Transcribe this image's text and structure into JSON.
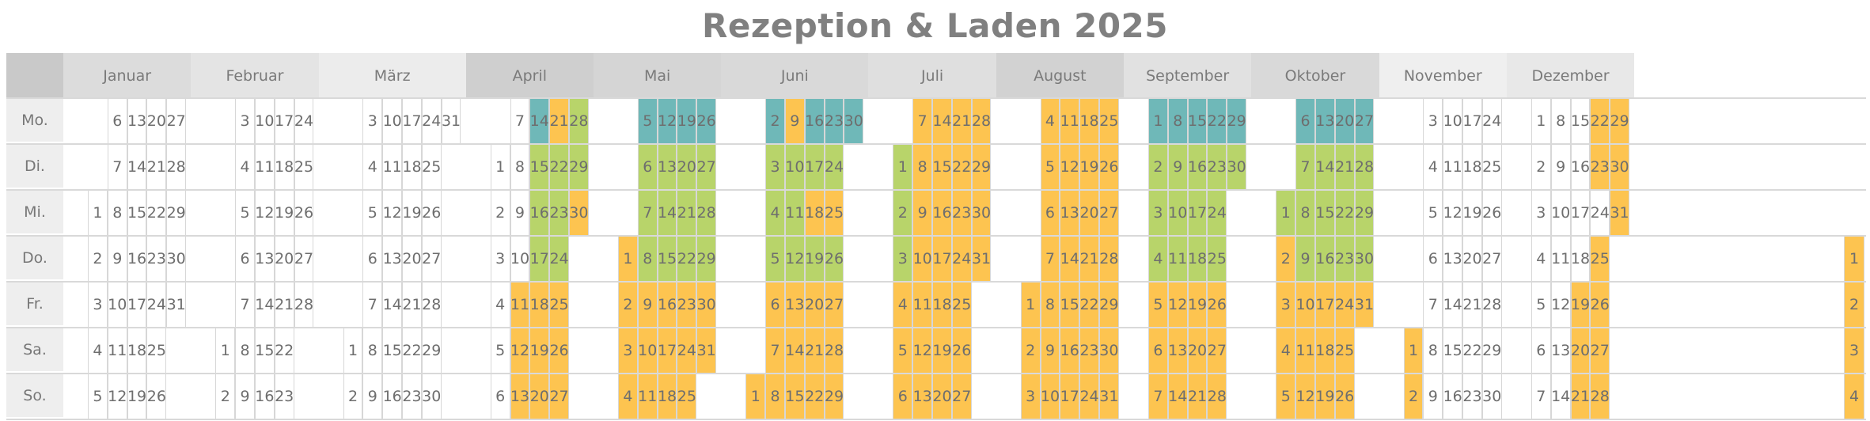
{
  "title": "Rezeption & Laden 2025",
  "colors": {
    "closed": "#ffffff",
    "orange": "#fdc450",
    "green": "#b8d46a",
    "teal": "#6fb8b8"
  },
  "weekdays": [
    "Mo.",
    "Di.",
    "Mi.",
    "Do.",
    "Fr.",
    "Sa.",
    "So."
  ],
  "months": [
    {
      "name": "Januar",
      "offset": 2,
      "days": 31
    },
    {
      "name": "Februar",
      "offset": 5,
      "days": 28
    },
    {
      "name": "März",
      "offset": 5,
      "days": 31
    },
    {
      "name": "April",
      "offset": 1,
      "days": 30
    },
    {
      "name": "Mai",
      "offset": 3,
      "days": 31
    },
    {
      "name": "Juni",
      "offset": 6,
      "days": 30
    },
    {
      "name": "Juli",
      "offset": 1,
      "days": 31
    },
    {
      "name": "August",
      "offset": 4,
      "days": 31
    },
    {
      "name": "September",
      "offset": 0,
      "days": 30
    },
    {
      "name": "Oktober",
      "offset": 2,
      "days": 31
    },
    {
      "name": "November",
      "offset": 5,
      "days": 30
    },
    {
      "name": "Dezember",
      "offset": 0,
      "days": 31
    }
  ],
  "status": {
    "April": {
      "teal": [
        14
      ],
      "green": [
        15,
        16,
        17,
        22,
        23,
        24,
        28,
        29
      ],
      "orange": [
        11,
        12,
        13,
        18,
        19,
        20,
        21,
        25,
        26,
        27,
        30
      ]
    },
    "Mai": {
      "teal": [
        5,
        12,
        19,
        26
      ],
      "green": [
        6,
        7,
        8,
        13,
        14,
        15,
        20,
        21,
        22,
        27,
        28,
        29
      ],
      "orange": [
        1,
        2,
        3,
        4,
        9,
        10,
        11,
        16,
        17,
        18,
        23,
        24,
        25,
        30,
        31
      ]
    },
    "Juni": {
      "teal": [
        2,
        16,
        23,
        30
      ],
      "green": [
        3,
        4,
        5,
        10,
        11,
        12,
        17,
        19,
        24,
        26
      ],
      "orange": [
        1,
        6,
        7,
        8,
        9,
        13,
        14,
        15,
        18,
        20,
        21,
        22,
        25,
        27,
        28,
        29
      ]
    },
    "Juli": {
      "green": [
        1,
        2,
        3
      ],
      "orange": [
        4,
        5,
        6,
        7,
        8,
        9,
        10,
        11,
        12,
        13,
        14,
        15,
        16,
        17,
        18,
        19,
        20,
        21,
        22,
        23,
        24,
        25,
        26,
        27,
        28,
        29,
        30,
        31
      ]
    },
    "August": {
      "orange": "all"
    },
    "September": {
      "teal": [
        1,
        8,
        15,
        22,
        29
      ],
      "green": [
        2,
        3,
        4,
        9,
        10,
        11,
        16,
        17,
        18,
        23,
        24,
        25,
        30
      ],
      "orange": [
        5,
        6,
        7,
        12,
        13,
        14,
        19,
        20,
        21,
        26,
        27,
        28
      ]
    },
    "Oktober": {
      "teal": [
        6,
        13,
        20,
        27
      ],
      "green": [
        1,
        7,
        8,
        9,
        14,
        15,
        16,
        21,
        22,
        23,
        28,
        29,
        30
      ],
      "orange": [
        2,
        3,
        4,
        5,
        10,
        11,
        12,
        17,
        18,
        19,
        24,
        25,
        26,
        31
      ]
    },
    "November": {
      "orange": [
        1,
        2
      ]
    },
    "Dezember": {
      "orange": [
        19,
        20,
        21,
        22,
        23,
        25,
        26,
        27,
        28,
        29,
        30,
        31
      ]
    }
  },
  "year_end_spill": {
    "label_days": [
      1,
      2,
      3,
      4
    ],
    "color": "orange"
  }
}
